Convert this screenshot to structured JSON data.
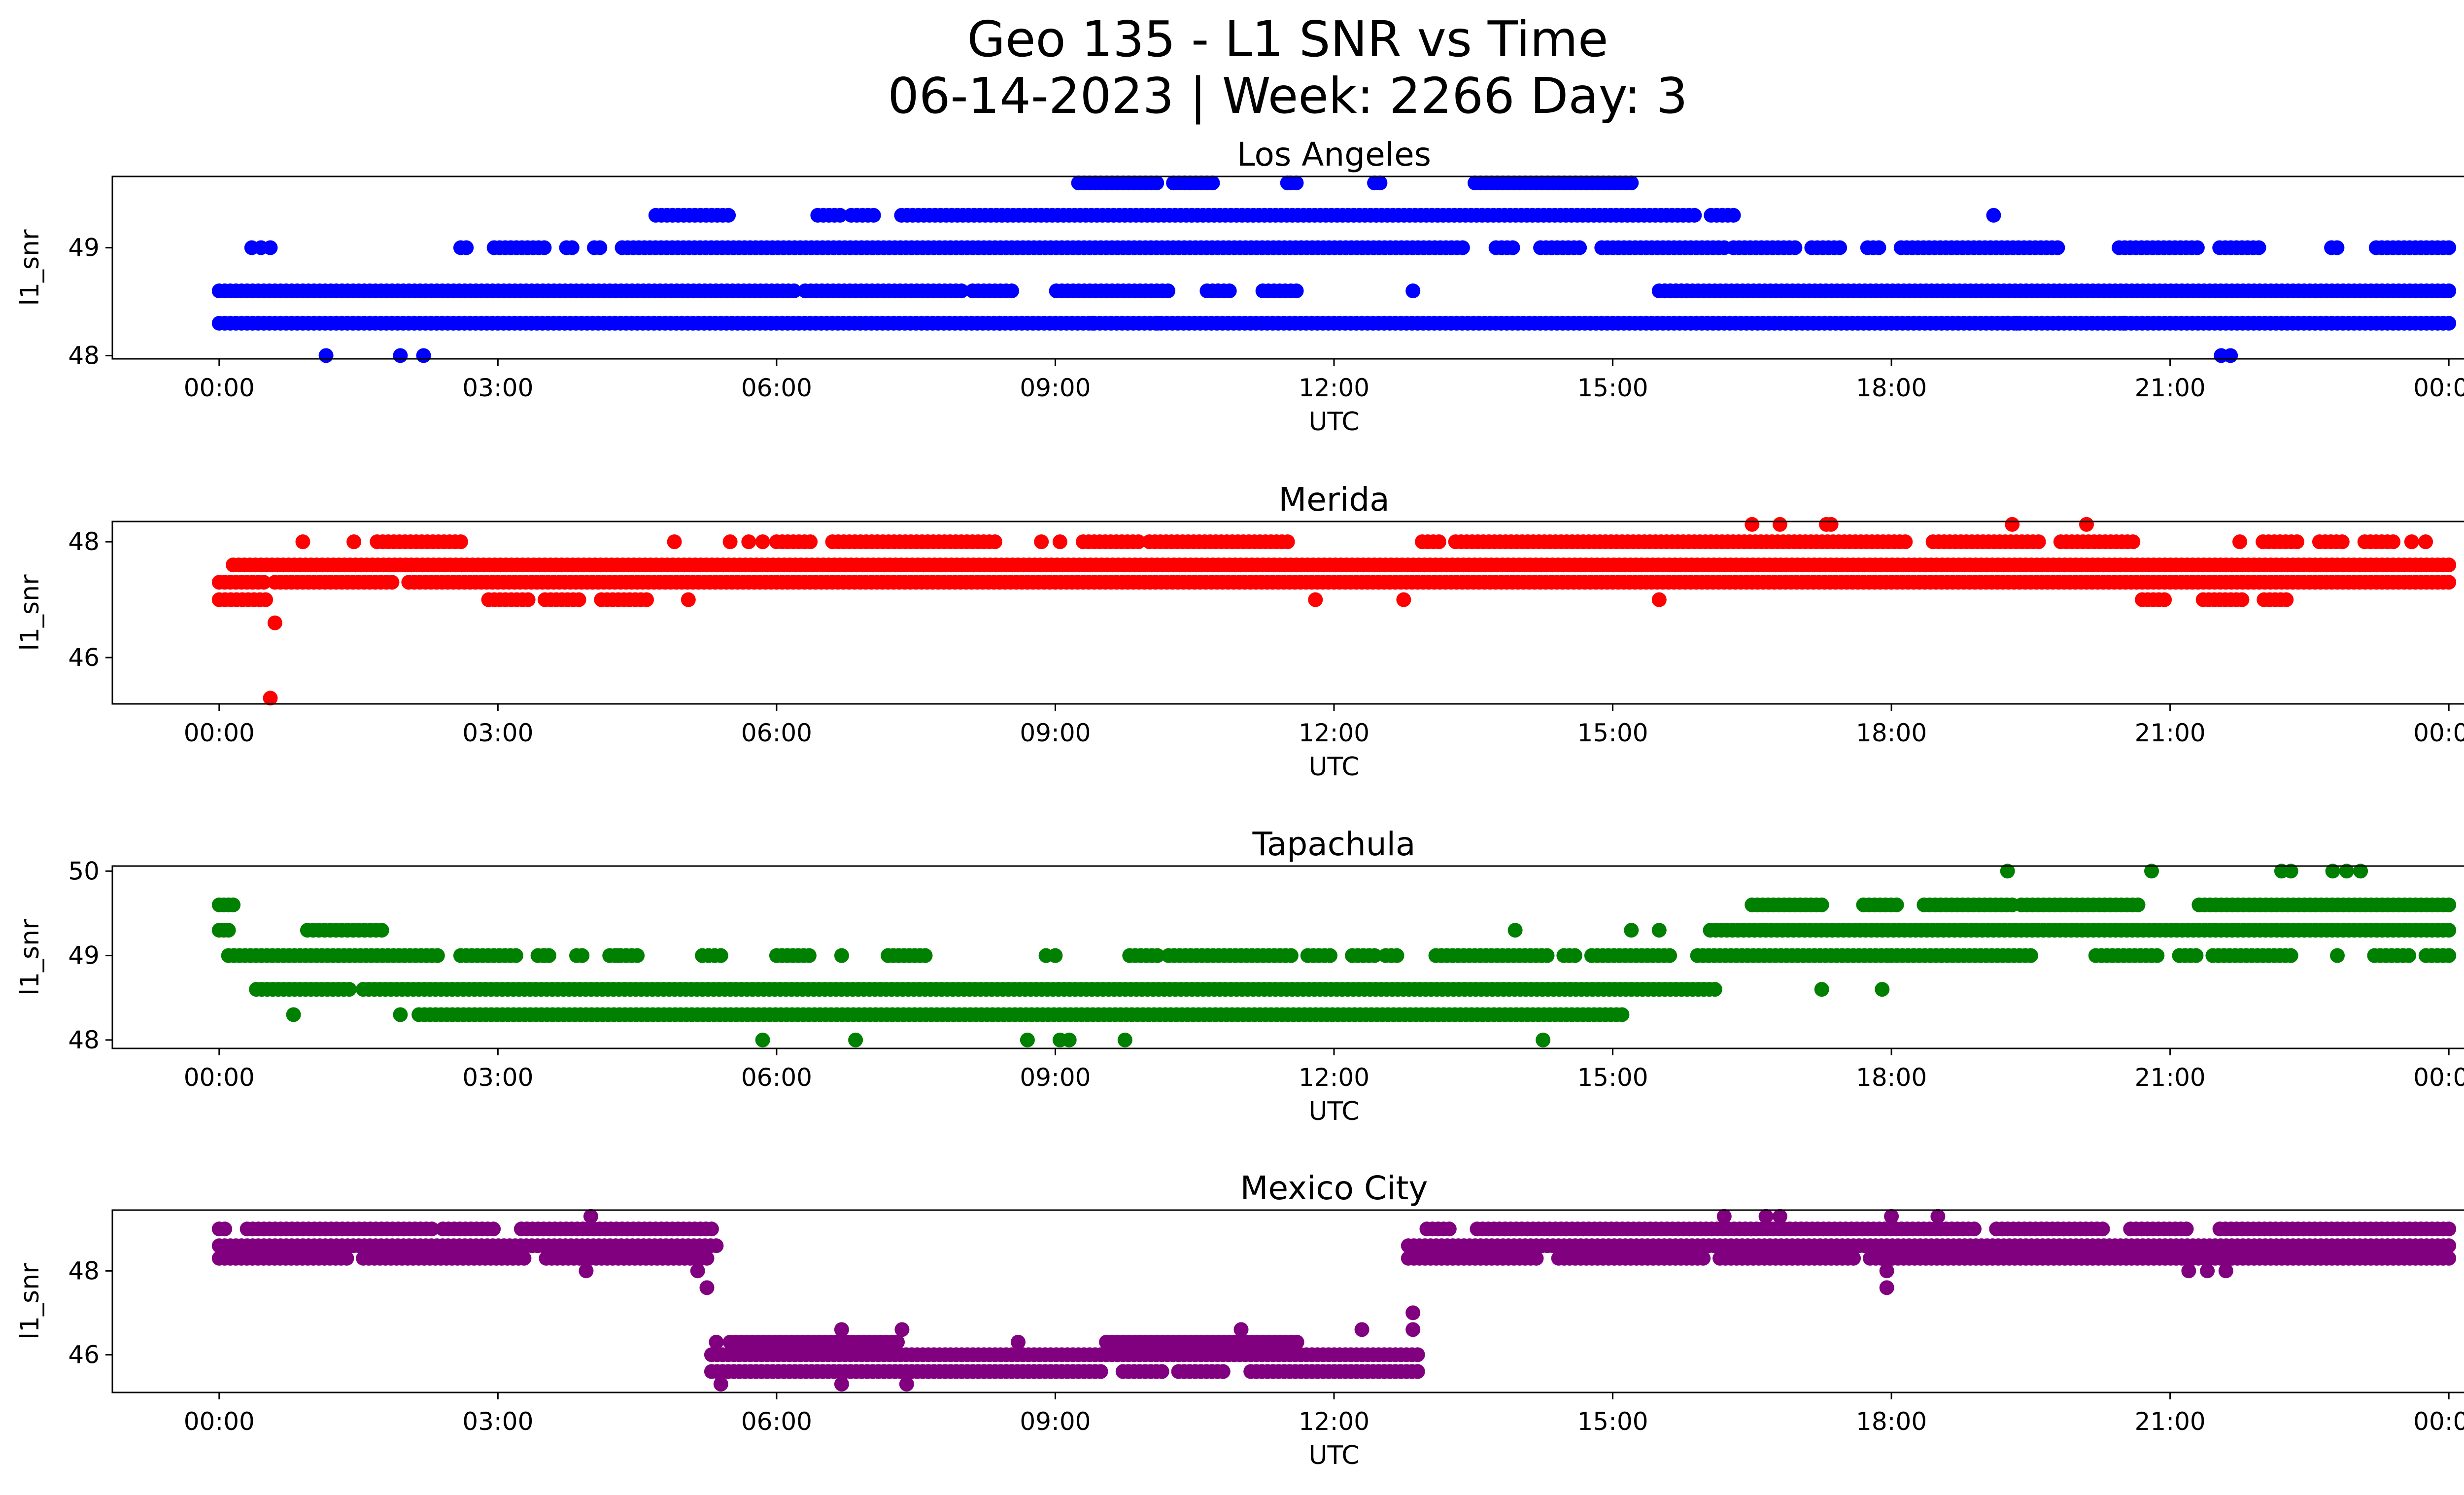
{
  "figure": {
    "title_line1": "Geo 135 - L1 SNR vs Time",
    "title_line2": "06-14-2023 | Week: 2266 Day: 3"
  },
  "chart_data": [
    {
      "type": "scatter",
      "title": "Los Angeles",
      "xlabel": "UTC",
      "ylabel": "l1_snr",
      "color": "#0000ff",
      "x_tick_labels": [
        "00:00",
        "03:00",
        "06:00",
        "09:00",
        "12:00",
        "15:00",
        "18:00",
        "21:00",
        "00:00"
      ],
      "x_ticks_hours": [
        0,
        3,
        6,
        9,
        12,
        15,
        18,
        21,
        24
      ],
      "xlim_hours": [
        -1.15,
        25.15
      ],
      "y_ticks": [
        48,
        49
      ],
      "ylim": [
        47.97,
        49.66
      ],
      "grid": false,
      "series": [
        {
          "hours": [
            0,
            24
          ],
          "snr": 48.3,
          "gaps": []
        },
        {
          "hours": [
            0,
            15.8
          ],
          "snr": 48.6,
          "gaps": [
            [
              6.2,
              6.3
            ],
            [
              8.0,
              8.1
            ],
            [
              8.55,
              9.0
            ],
            [
              10.25,
              10.6
            ],
            [
              10.9,
              11.2
            ],
            [
              11.6,
              15.5
            ]
          ]
        },
        {
          "hours": [
            15.5,
            24
          ],
          "snr": 48.6,
          "gaps": []
        },
        {
          "hours": [
            2.6,
            16.2
          ],
          "snr": 49.0,
          "gaps": [
            [
              2.7,
              2.9
            ],
            [
              3.5,
              3.7
            ],
            [
              3.85,
              4.0
            ],
            [
              4.15,
              4.3
            ],
            [
              13.4,
              13.7
            ],
            [
              13.95,
              14.2
            ],
            [
              14.7,
              14.85
            ]
          ]
        },
        {
          "hours": [
            16.3,
            24
          ],
          "snr": 49.0,
          "gaps": [
            [
              17.0,
              17.1
            ],
            [
              17.5,
              17.7
            ],
            [
              17.9,
              18.1
            ],
            [
              19.8,
              20.4
            ],
            [
              21.3,
              21.5
            ],
            [
              22.0,
              22.7
            ],
            [
              22.8,
              23.2
            ]
          ]
        },
        {
          "hours": [
            4.7,
            16.3
          ],
          "snr": 49.3,
          "gaps": [
            [
              5.5,
              6.4
            ],
            [
              6.7,
              6.8
            ],
            [
              7.1,
              7.3
            ],
            [
              15.9,
              16.05
            ]
          ]
        },
        {
          "hours": [
            9.25,
            15.2
          ],
          "snr": 49.6,
          "gaps": [
            [
              10.1,
              10.25
            ],
            [
              10.7,
              11.5
            ],
            [
              11.6,
              12.4
            ],
            [
              12.55,
              13.5
            ]
          ]
        }
      ],
      "points": [
        [
          1.15,
          48.0
        ],
        [
          1.95,
          48.0
        ],
        [
          2.2,
          48.0
        ],
        [
          0.35,
          49.0
        ],
        [
          0.45,
          49.0
        ],
        [
          0.55,
          49.0
        ],
        [
          8.4,
          48.3
        ],
        [
          9.4,
          48.3
        ],
        [
          10.1,
          48.3
        ],
        [
          10.75,
          48.6
        ],
        [
          12.85,
          48.6
        ],
        [
          11.5,
          49.6
        ],
        [
          19.1,
          49.3
        ],
        [
          19.25,
          48.3
        ],
        [
          19.35,
          48.3
        ],
        [
          19.8,
          48.3
        ],
        [
          20.4,
          48.3
        ],
        [
          20.5,
          48.3
        ],
        [
          21.55,
          48.0
        ],
        [
          21.65,
          48.0
        ]
      ]
    },
    {
      "type": "scatter",
      "title": "Merida",
      "xlabel": "UTC",
      "ylabel": "l1_snr",
      "color": "#ff0000",
      "x_tick_labels": [
        "00:00",
        "03:00",
        "06:00",
        "09:00",
        "12:00",
        "15:00",
        "18:00",
        "21:00",
        "00:00"
      ],
      "x_ticks_hours": [
        0,
        3,
        6,
        9,
        12,
        15,
        18,
        21,
        24
      ],
      "xlim_hours": [
        -1.15,
        25.15
      ],
      "y_ticks": [
        46,
        48
      ],
      "ylim": [
        45.2,
        48.35
      ],
      "grid": false,
      "series": [
        {
          "hours": [
            0,
            24
          ],
          "snr": 47.3,
          "gaps": [
            [
              0.5,
              0.6
            ],
            [
              1.9,
              2.0
            ]
          ]
        },
        {
          "hours": [
            0.15,
            24
          ],
          "snr": 47.6,
          "gaps": []
        },
        {
          "hours": [
            0,
            0.5
          ],
          "snr": 47.0,
          "gaps": []
        },
        {
          "hours": [
            2.9,
            4.6
          ],
          "snr": 47.0,
          "gaps": [
            [
              3.35,
              3.5
            ],
            [
              3.9,
              4.1
            ]
          ]
        },
        {
          "hours": [
            1.7,
            2.6
          ],
          "snr": 48.0,
          "gaps": []
        },
        {
          "hours": [
            6.0,
            8.35
          ],
          "snr": 48.0,
          "gaps": [
            [
              6.4,
              6.6
            ]
          ]
        },
        {
          "hours": [
            9.3,
            11.5
          ],
          "snr": 48.0,
          "gaps": [
            [
              9.9,
              10.0
            ]
          ]
        },
        {
          "hours": [
            12.95,
            20.6
          ],
          "snr": 48.0,
          "gaps": [
            [
              13.15,
              13.3
            ],
            [
              18.2,
              18.4
            ],
            [
              19.6,
              19.8
            ]
          ]
        },
        {
          "hours": [
            22.0,
            23.4
          ],
          "snr": 48.0,
          "gaps": [
            [
              22.4,
              22.6
            ],
            [
              22.9,
              23.05
            ]
          ]
        },
        {
          "hours": [
            20.7,
            22.25
          ],
          "snr": 47.0,
          "gaps": [
            [
              20.95,
              21.35
            ],
            [
              21.8,
              22.0
            ]
          ]
        }
      ],
      "points": [
        [
          0.6,
          46.6
        ],
        [
          0.55,
          45.3
        ],
        [
          0.9,
          48.0
        ],
        [
          1.45,
          48.0
        ],
        [
          4.9,
          48.0
        ],
        [
          5.5,
          48.0
        ],
        [
          5.7,
          48.0
        ],
        [
          5.85,
          48.0
        ],
        [
          8.85,
          48.0
        ],
        [
          9.05,
          48.0
        ],
        [
          5.05,
          47.0
        ],
        [
          11.8,
          47.0
        ],
        [
          12.75,
          47.0
        ],
        [
          15.5,
          47.0
        ],
        [
          16.5,
          48.3
        ],
        [
          16.8,
          48.3
        ],
        [
          17.3,
          48.3
        ],
        [
          17.35,
          48.3
        ],
        [
          19.3,
          48.3
        ],
        [
          20.1,
          48.3
        ],
        [
          21.75,
          48.0
        ],
        [
          23.6,
          48.0
        ],
        [
          23.75,
          48.0
        ]
      ]
    },
    {
      "type": "scatter",
      "title": "Tapachula",
      "xlabel": "UTC",
      "ylabel": "l1_snr",
      "color": "#008000",
      "x_tick_labels": [
        "00:00",
        "03:00",
        "06:00",
        "09:00",
        "12:00",
        "15:00",
        "18:00",
        "21:00",
        "00:00"
      ],
      "x_ticks_hours": [
        0,
        3,
        6,
        9,
        12,
        15,
        18,
        21,
        24
      ],
      "xlim_hours": [
        -1.15,
        25.15
      ],
      "y_ticks": [
        48,
        49,
        50
      ],
      "ylim": [
        47.9,
        50.06
      ],
      "grid": false,
      "series": [
        {
          "hours": [
            0,
            0.15
          ],
          "snr": 49.6,
          "gaps": []
        },
        {
          "hours": [
            0,
            0.1
          ],
          "snr": 49.3,
          "gaps": []
        },
        {
          "hours": [
            0.95,
            1.75
          ],
          "snr": 49.3,
          "gaps": []
        },
        {
          "hours": [
            0.1,
            2.35
          ],
          "snr": 49.0,
          "gaps": []
        },
        {
          "hours": [
            2.6,
            4.5
          ],
          "snr": 49.0,
          "gaps": [
            [
              3.2,
              3.4
            ],
            [
              3.6,
              3.8
            ],
            [
              3.95,
              4.15
            ]
          ]
        },
        {
          "hours": [
            5.2,
            5.4
          ],
          "snr": 49.0,
          "gaps": []
        },
        {
          "hours": [
            6.0,
            6.35
          ],
          "snr": 49.0,
          "gaps": []
        },
        {
          "hours": [
            7.2,
            7.6
          ],
          "snr": 49.0,
          "gaps": []
        },
        {
          "hours": [
            9.8,
            17.95
          ],
          "snr": 49.0,
          "gaps": [
            [
              10.1,
              10.2
            ],
            [
              11.55,
              11.7
            ],
            [
              12.0,
              12.15
            ],
            [
              12.45,
              12.55
            ],
            [
              12.7,
              13.05
            ],
            [
              14.3,
              14.45
            ],
            [
              14.6,
              14.75
            ],
            [
              15.65,
              15.9
            ]
          ]
        },
        {
          "hours": [
            18.0,
            19.5
          ],
          "snr": 49.0,
          "gaps": []
        },
        {
          "hours": [
            20.2,
            22.3
          ],
          "snr": 49.0,
          "gaps": [
            [
              20.9,
              21.05
            ],
            [
              21.3,
              21.45
            ]
          ]
        },
        {
          "hours": [
            23.2,
            24
          ],
          "snr": 49.0,
          "gaps": [
            [
              23.6,
              23.75
            ]
          ]
        },
        {
          "hours": [
            0.4,
            1.4
          ],
          "snr": 48.6,
          "gaps": []
        },
        {
          "hours": [
            1.55,
            16.1
          ],
          "snr": 48.6,
          "gaps": []
        },
        {
          "hours": [
            2.15,
            15.1
          ],
          "snr": 48.3,
          "gaps": []
        },
        {
          "hours": [
            16.05,
            24
          ],
          "snr": 49.3,
          "gaps": []
        },
        {
          "hours": [
            16.5,
            17.25
          ],
          "snr": 49.6,
          "gaps": []
        },
        {
          "hours": [
            17.7,
            19.3
          ],
          "snr": 49.6,
          "gaps": [
            [
              18.1,
              18.3
            ]
          ]
        },
        {
          "hours": [
            19.4,
            24
          ],
          "snr": 49.6,
          "gaps": [
            [
              20.7,
              21.3
            ]
          ]
        }
      ],
      "points": [
        [
          0.8,
          48.3
        ],
        [
          1.95,
          48.3
        ],
        [
          5.85,
          48.0
        ],
        [
          6.85,
          48.0
        ],
        [
          8.7,
          48.0
        ],
        [
          9.05,
          48.0
        ],
        [
          9.15,
          48.0
        ],
        [
          9.75,
          48.0
        ],
        [
          14.25,
          48.0
        ],
        [
          6.7,
          49.0
        ],
        [
          3.5,
          49.0
        ],
        [
          4.3,
          49.0
        ],
        [
          8.9,
          49.0
        ],
        [
          9.0,
          49.0
        ],
        [
          13.95,
          49.3
        ],
        [
          15.2,
          49.3
        ],
        [
          15.5,
          49.3
        ],
        [
          17.25,
          48.6
        ],
        [
          17.9,
          48.6
        ],
        [
          19.25,
          50.0
        ],
        [
          20.8,
          50.0
        ],
        [
          22.2,
          50.0
        ],
        [
          22.3,
          50.0
        ],
        [
          22.75,
          50.0
        ],
        [
          22.9,
          50.0
        ],
        [
          23.05,
          50.0
        ],
        [
          22.8,
          49.0
        ]
      ]
    },
    {
      "type": "scatter",
      "title": "Mexico City",
      "xlabel": "UTC",
      "ylabel": "l1_snr",
      "color": "#800080",
      "x_tick_labels": [
        "00:00",
        "03:00",
        "06:00",
        "09:00",
        "12:00",
        "15:00",
        "18:00",
        "21:00",
        "00:00"
      ],
      "x_ticks_hours": [
        0,
        3,
        6,
        9,
        12,
        15,
        18,
        21,
        24
      ],
      "xlim_hours": [
        -1.15,
        25.15
      ],
      "y_ticks": [
        46,
        48
      ],
      "ylim": [
        45.1,
        49.45
      ],
      "grid": false,
      "series": [
        {
          "hours": [
            0,
            5.3
          ],
          "snr": 49.0,
          "gaps": [
            [
              0.1,
              0.25
            ],
            [
              2.3,
              2.4
            ],
            [
              3.0,
              3.2
            ]
          ]
        },
        {
          "hours": [
            0,
            5.35
          ],
          "snr": 48.6,
          "gaps": []
        },
        {
          "hours": [
            0,
            5.25
          ],
          "snr": 48.3,
          "gaps": [
            [
              1.4,
              1.5
            ],
            [
              3.3,
              3.5
            ]
          ]
        },
        {
          "hours": [
            5.3,
            12.9
          ],
          "snr": 46.0,
          "gaps": []
        },
        {
          "hours": [
            5.3,
            12.9
          ],
          "snr": 45.6,
          "gaps": [
            [
              9.5,
              9.7
            ],
            [
              10.15,
              10.3
            ],
            [
              10.85,
              11.05
            ]
          ]
        },
        {
          "hours": [
            5.5,
            7.3
          ],
          "snr": 46.3,
          "gaps": []
        },
        {
          "hours": [
            9.55,
            11.6
          ],
          "snr": 46.3,
          "gaps": []
        },
        {
          "hours": [
            12.8,
            24
          ],
          "snr": 48.6,
          "gaps": []
        },
        {
          "hours": [
            12.8,
            24
          ],
          "snr": 48.3,
          "gaps": [
            [
              14.2,
              14.4
            ],
            [
              16.0,
              16.15
            ],
            [
              17.6,
              17.75
            ]
          ]
        },
        {
          "hours": [
            13.0,
            24
          ],
          "snr": 49.0,
          "gaps": [
            [
              13.3,
              13.5
            ],
            [
              18.9,
              19.1
            ],
            [
              20.3,
              20.55
            ],
            [
              21.2,
              21.5
            ]
          ]
        }
      ],
      "points": [
        [
          4.0,
          49.3
        ],
        [
          5.15,
          48.0
        ],
        [
          5.25,
          47.6
        ],
        [
          5.35,
          46.3
        ],
        [
          5.4,
          45.3
        ],
        [
          6.7,
          45.3
        ],
        [
          7.4,
          45.3
        ],
        [
          6.7,
          46.6
        ],
        [
          7.35,
          46.6
        ],
        [
          8.6,
          46.3
        ],
        [
          11.0,
          46.6
        ],
        [
          12.3,
          46.6
        ],
        [
          12.85,
          46.6
        ],
        [
          12.85,
          47.0
        ],
        [
          3.95,
          48.0
        ],
        [
          16.2,
          49.3
        ],
        [
          16.65,
          49.3
        ],
        [
          16.8,
          49.3
        ],
        [
          18.0,
          49.3
        ],
        [
          18.5,
          49.3
        ],
        [
          17.95,
          48.0
        ],
        [
          17.95,
          47.6
        ],
        [
          21.2,
          48.0
        ],
        [
          21.4,
          48.0
        ],
        [
          21.6,
          48.0
        ]
      ]
    }
  ]
}
